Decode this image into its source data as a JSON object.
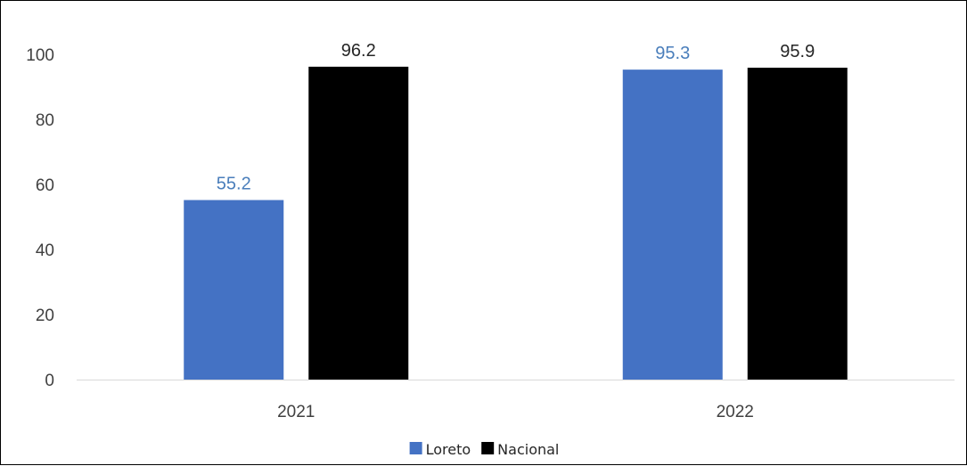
{
  "chart_data": {
    "type": "bar",
    "categories": [
      "2021",
      "2022"
    ],
    "series": [
      {
        "name": "Loreto",
        "values": [
          55.2,
          95.3
        ],
        "color": "#4472C4",
        "label_color": "#4A7EBB"
      },
      {
        "name": "Nacional",
        "values": [
          96.2,
          95.9
        ],
        "color": "#000000",
        "label_color": "#262626"
      }
    ],
    "title": "",
    "xlabel": "",
    "ylabel": "",
    "ylim": [
      0,
      100
    ],
    "yticks": [
      0,
      20,
      40,
      60,
      80,
      100
    ],
    "grid": false,
    "legend_position": "bottom"
  }
}
